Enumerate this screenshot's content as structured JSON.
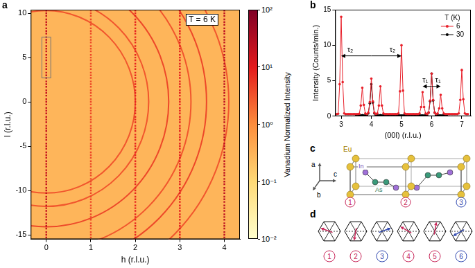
{
  "chart_data": [
    {
      "panel": "a",
      "type": "scatter",
      "marker": "square",
      "grid": false,
      "xlabel": "h (r.l.u.)",
      "ylabel": "l (r.l.u.)",
      "xlim": [
        -0.35,
        4.35
      ],
      "xticks": [
        0,
        1,
        2,
        3,
        4
      ],
      "ylim": [
        -15.5,
        10.4
      ],
      "yticks": [
        -15,
        -10,
        -5,
        0,
        5,
        10
      ],
      "annotation": "T = 6 K",
      "background_intensity": 0.3,
      "peaks": {
        "h": [
          0,
          1,
          2,
          3,
          4
        ],
        "l": [
          -15.3,
          -15,
          -14.7,
          -14.3,
          -14,
          -13.7,
          -13.3,
          -13,
          -12.7,
          -12.3,
          -12,
          -11.7,
          -11.3,
          -11,
          -10.7,
          -10.3,
          -10,
          -9.7,
          -9.3,
          -9,
          -8.7,
          -8.3,
          -8,
          -7.7,
          -7.3,
          -7,
          -6.7,
          -6.3,
          -6,
          -5.7,
          -5.3,
          -5,
          -4.7,
          -4.3,
          -4,
          -3.7,
          -3.3,
          -3,
          -2.7,
          -2.3,
          -2,
          -1.7,
          -1.3,
          -1,
          -0.7,
          -0.3,
          0,
          0.3,
          0.7,
          1,
          1.3,
          1.7,
          2,
          2.3,
          2.7,
          3,
          3.3,
          3.7,
          4,
          4.3,
          4.7,
          5,
          5.3,
          5.7,
          6,
          6.3,
          6.7,
          7,
          7.3,
          7.7,
          8,
          8.3,
          8.7,
          9,
          9.3,
          9.7,
          10,
          10.3
        ],
        "intensity": [
          20,
          4,
          8,
          10,
          25
        ]
      },
      "ring_center": {
        "h": 0,
        "l": 0
      },
      "rings": [
        {
          "h_radius": 2.0,
          "l_radius": 10.3,
          "intensity": 3
        },
        {
          "h_radius": 2.3,
          "l_radius": 11.8,
          "intensity": 3
        },
        {
          "h_radius": 2.75,
          "l_radius": 14.1,
          "intensity": 4
        },
        {
          "h_radius": 3.25,
          "l_radius": 16.7,
          "intensity": 3
        },
        {
          "h_radius": 3.6,
          "l_radius": 18.5,
          "intensity": 4
        },
        {
          "h_radius": 4.1,
          "l_radius": 21.0,
          "intensity": 3
        }
      ],
      "highlight_box": {
        "h": [
          -0.1,
          0.1
        ],
        "l": [
          2.7,
          7.3
        ]
      },
      "colorbar": {
        "label": "Vanadium Normalized Intensity",
        "log": true,
        "range": [
          0.01,
          100
        ],
        "ticks": [
          {
            "value": 0.01,
            "label": "10⁻²"
          },
          {
            "value": 0.1,
            "label": "10⁻¹"
          },
          {
            "value": 1,
            "label": "10⁰"
          },
          {
            "value": 10,
            "label": "10¹"
          },
          {
            "value": 100,
            "label": "10²"
          }
        ]
      }
    },
    {
      "panel": "b",
      "type": "line",
      "grid": false,
      "xlabel": "(00l) (r.l.u.)",
      "ylabel": "Intensity (Counts/min.)",
      "xlim": [
        2.8,
        7.3
      ],
      "xticks": [
        3,
        4,
        5,
        6,
        7
      ],
      "ylim": [
        0,
        15
      ],
      "yticks": [
        0,
        5,
        10,
        15
      ],
      "legend": "top-right",
      "legend_title": "T (K)",
      "x": [
        2.85,
        2.9,
        2.95,
        3,
        3.05,
        3.1,
        3.15,
        3.2,
        3.25,
        3.3,
        3.35,
        3.4,
        3.45,
        3.5,
        3.55,
        3.6,
        3.65,
        3.7,
        3.75,
        3.8,
        3.85,
        3.9,
        3.95,
        4,
        4.05,
        4.1,
        4.15,
        4.2,
        4.25,
        4.3,
        4.35,
        4.4,
        4.45,
        4.5,
        4.55,
        4.6,
        4.65,
        4.7,
        4.75,
        4.8,
        4.85,
        4.9,
        4.95,
        5,
        5.05,
        5.1,
        5.15,
        5.2,
        5.25,
        5.3,
        5.35,
        5.4,
        5.45,
        5.5,
        5.55,
        5.6,
        5.65,
        5.7,
        5.75,
        5.8,
        5.85,
        5.9,
        5.95,
        6,
        6.05,
        6.1,
        6.15,
        6.2,
        6.25,
        6.3,
        6.35,
        6.4,
        6.45,
        6.5,
        6.55,
        6.6,
        6.65,
        6.7,
        6.75,
        6.8,
        6.85,
        6.9,
        6.95,
        7,
        7.05,
        7.1,
        7.15,
        7.2
      ],
      "series": [
        {
          "name": "6",
          "color": "#e8202a",
          "marker": "circle",
          "line_style": "solid",
          "values": [
            0.3,
            0.35,
            4.5,
            14,
            4.8,
            0.4,
            0.3,
            0.3,
            0.3,
            0.3,
            0.3,
            0.3,
            0.3,
            0.3,
            0.3,
            0.35,
            1.5,
            4,
            1.6,
            0.4,
            0.3,
            0.5,
            2,
            5.3,
            2.1,
            0.5,
            0.3,
            0.4,
            1.5,
            4.2,
            1.5,
            0.4,
            0.3,
            0.3,
            0.3,
            0.3,
            0.3,
            0.3,
            0.3,
            0.3,
            0.3,
            0.4,
            3.5,
            10,
            3.6,
            0.4,
            0.3,
            0.3,
            0.3,
            0.3,
            0.3,
            0.3,
            0.3,
            0.3,
            0.3,
            0.4,
            1.3,
            3.4,
            1.3,
            0.4,
            0.3,
            0.5,
            2.2,
            6,
            2.3,
            0.5,
            0.3,
            0.4,
            1.1,
            3,
            1.1,
            0.4,
            0.3,
            0.3,
            0.3,
            0.3,
            0.3,
            0.3,
            0.3,
            0.3,
            0.3,
            0.4,
            2.3,
            6.5,
            2.4,
            0.4,
            0.3,
            0.3
          ]
        },
        {
          "name": "30",
          "color": "#000000",
          "marker": "circle",
          "line_style": "solid",
          "values": [
            null,
            null,
            null,
            null,
            null,
            null,
            null,
            null,
            null,
            null,
            null,
            null,
            null,
            0.1,
            0.1,
            0.1,
            0.1,
            0.15,
            0.1,
            0.1,
            0.15,
            0.4,
            1.8,
            4.5,
            1.9,
            0.4,
            0.15,
            0.1,
            0.1,
            0.15,
            0.1,
            0.1,
            0.1,
            0.1,
            0.1,
            0.1,
            0.1,
            0.1,
            0.1,
            0.1,
            0.1,
            0.1,
            0.1,
            0.1,
            0.1,
            0.1,
            0.1,
            0.1,
            0.1,
            0.1,
            0.1,
            0.1,
            0.1,
            0.1,
            0.1,
            0.1,
            0.1,
            0.1,
            0.1,
            0.1,
            0.1,
            0.5,
            2.1,
            6,
            2.2,
            0.5,
            0.15,
            0.1,
            0.1,
            0.1,
            0.1,
            0.1,
            0.1,
            0.1,
            null,
            null,
            null,
            null,
            null,
            null,
            null,
            null,
            null,
            null,
            null,
            null,
            null,
            null
          ]
        }
      ],
      "annotations": [
        {
          "text": "τ₂",
          "from": 4,
          "to": 3,
          "y": 8.5
        },
        {
          "text": "τ₂",
          "from": 4,
          "to": 5,
          "y": 8.5
        },
        {
          "text": "τ₁",
          "from": 6,
          "to": 5.7,
          "y": 4.2
        },
        {
          "text": "τ₁",
          "from": 6,
          "to": 6.3,
          "y": 4.2
        }
      ]
    }
  ],
  "diagrams": {
    "c": {
      "panel": "c",
      "atoms": [
        {
          "label": "Eu",
          "color": "#e6c13c"
        },
        {
          "label": "In",
          "color": "#a070d8"
        },
        {
          "label": "As",
          "color": "#3a9a7a"
        }
      ],
      "axes": [
        "a",
        "b",
        "c"
      ],
      "sites": [
        {
          "label": "1",
          "color": "#c8285a"
        },
        {
          "label": "2",
          "color": "#c8285a"
        },
        {
          "label": "3",
          "color": "#3048b0"
        }
      ]
    },
    "d": {
      "panel": "d",
      "spins": [
        {
          "label": "1",
          "angle": 160,
          "color": "#c8285a"
        },
        {
          "label": "2",
          "angle": 260,
          "color": "#c8285a"
        },
        {
          "label": "3",
          "angle": 20,
          "color": "#3048b0"
        },
        {
          "label": "4",
          "angle": 150,
          "color": "#c8285a"
        },
        {
          "label": "5",
          "angle": 80,
          "color": "#c8285a"
        },
        {
          "label": "6",
          "angle": 210,
          "color": "#3048b0"
        }
      ]
    }
  }
}
